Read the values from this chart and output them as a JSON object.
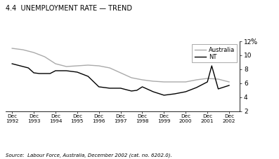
{
  "title": "4.4  UNEMPLOYMENT RATE — TREND",
  "source": "Source:  Labour Force, Australia, December 2002 (cat. no. 6202.0).",
  "ylabel": "%",
  "ylim": [
    2,
    12
  ],
  "yticks": [
    2,
    4,
    6,
    8,
    10,
    12
  ],
  "x_labels": [
    "Dec\n1992",
    "Dec\n1993",
    "Dec\n1994",
    "Dec\n1995",
    "Dec\n1996",
    "Dec\n1997",
    "Dec\n1998",
    "Dec\n1999",
    "Dec\n2000",
    "Dec\n2001",
    "Dec\n2002"
  ],
  "x_values": [
    1992,
    1993,
    1994,
    1995,
    1996,
    1997,
    1998,
    1999,
    2000,
    2001,
    2002
  ],
  "nt_x": [
    1992.0,
    1992.75,
    1993.0,
    1993.25,
    1993.75,
    1994.0,
    1994.5,
    1994.75,
    1995.0,
    1995.5,
    1996.0,
    1996.5,
    1997.0,
    1997.25,
    1997.5,
    1997.75,
    1998.0,
    1998.5,
    1999.0,
    1999.5,
    2000.0,
    2000.5,
    2001.0,
    2001.2,
    2001.5,
    2002.0
  ],
  "nt_y": [
    8.8,
    8.2,
    7.5,
    7.4,
    7.4,
    7.8,
    7.8,
    7.7,
    7.6,
    7.0,
    5.5,
    5.3,
    5.3,
    5.1,
    4.9,
    5.0,
    5.5,
    4.8,
    4.3,
    4.5,
    4.8,
    5.4,
    6.2,
    8.5,
    5.2,
    5.7
  ],
  "aus_x": [
    1992.0,
    1992.5,
    1993.0,
    1993.5,
    1994.0,
    1994.5,
    1995.0,
    1995.5,
    1996.0,
    1996.5,
    1997.0,
    1997.5,
    1998.0,
    1998.5,
    1999.0,
    1999.5,
    2000.0,
    2000.5,
    2001.0,
    2001.5,
    2002.0
  ],
  "aus_y": [
    11.0,
    10.8,
    10.4,
    9.8,
    8.8,
    8.4,
    8.5,
    8.6,
    8.5,
    8.2,
    7.5,
    6.8,
    6.5,
    6.3,
    6.2,
    6.2,
    6.2,
    6.5,
    6.7,
    6.6,
    6.2
  ],
  "nt_color": "#000000",
  "aus_color": "#aaaaaa",
  "bg_color": "#ffffff",
  "legend_labels": [
    "NT",
    "Australia"
  ],
  "linewidth": 1.0
}
